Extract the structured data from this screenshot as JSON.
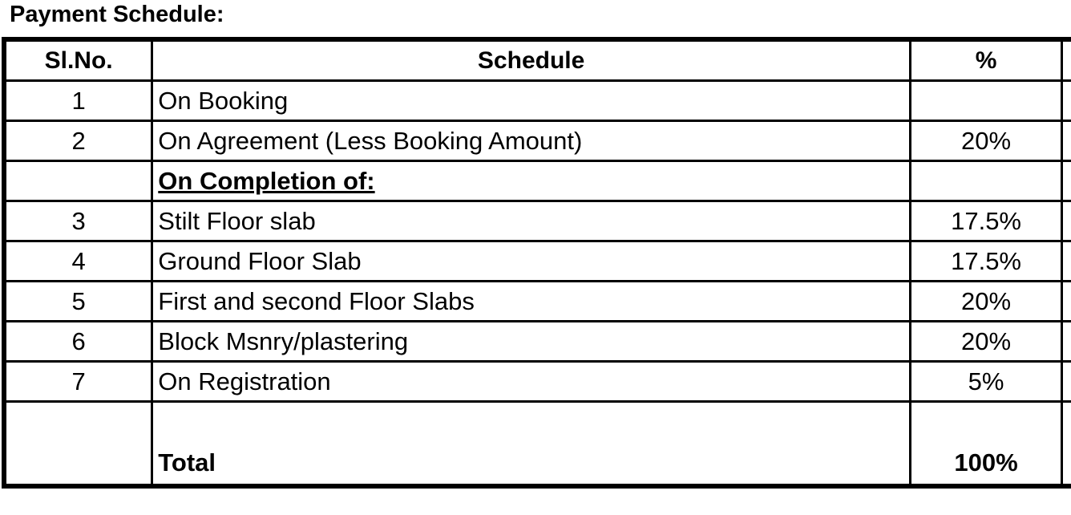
{
  "title": "Payment Schedule:",
  "headers": [
    "Sl.No.",
    "Schedule",
    "%"
  ],
  "rows": [
    {
      "no": "1",
      "schedule": "On Booking",
      "pct": ""
    },
    {
      "no": "2",
      "schedule": "On Agreement (Less Booking Amount)",
      "pct": "20%"
    },
    {
      "no": "",
      "schedule": "On Completion of:",
      "pct": "",
      "subheading": true
    },
    {
      "no": "3",
      "schedule": "Stilt Floor slab",
      "pct": "17.5%"
    },
    {
      "no": "4",
      "schedule": "Ground Floor Slab",
      "pct": "17.5%"
    },
    {
      "no": "5",
      "schedule": "First and second Floor Slabs",
      "pct": "20%"
    },
    {
      "no": "6",
      "schedule": "Block Msnry/plastering",
      "pct": "20%"
    },
    {
      "no": "7",
      "schedule": "On Registration",
      "pct": "5%"
    }
  ],
  "total": {
    "label": "Total",
    "pct": "100%"
  }
}
